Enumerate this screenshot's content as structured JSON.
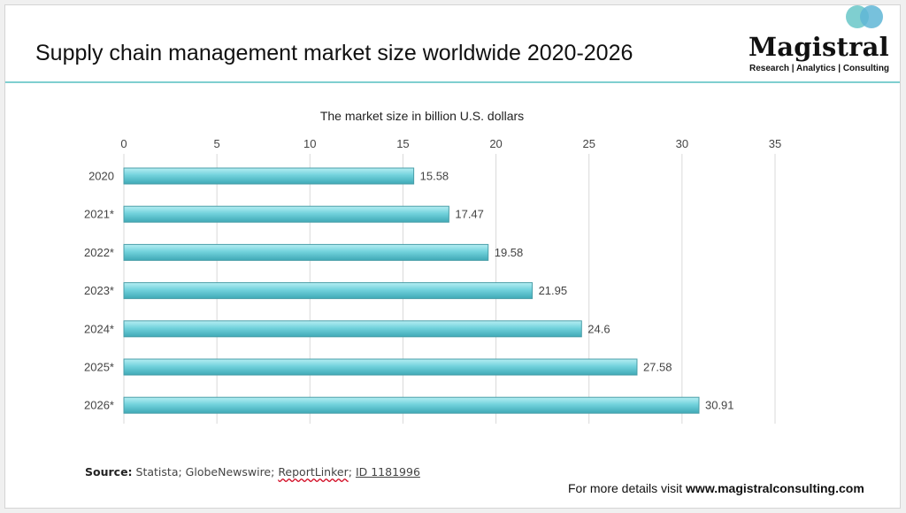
{
  "header": {
    "title": "Supply chain management market size worldwide 2020-2026"
  },
  "logo": {
    "name": "Magistral",
    "tagline": "Research | Analytics | Consulting",
    "circle_colors": [
      "#7fcfd0",
      "#5fb6d6"
    ]
  },
  "chart_data": {
    "type": "bar",
    "orientation": "horizontal",
    "title": "The market size in billion U.S. dollars",
    "xlabel": "",
    "ylabel": "",
    "categories": [
      "2020",
      "2021*",
      "2022*",
      "2023*",
      "2024*",
      "2025*",
      "2026*"
    ],
    "values": [
      15.58,
      17.47,
      19.58,
      21.95,
      24.6,
      27.58,
      30.91
    ],
    "xlim": [
      0,
      35
    ],
    "xticks": [
      0,
      5,
      10,
      15,
      20,
      25,
      30,
      35
    ],
    "x_axis_position": "top",
    "grid": true,
    "legend": "none",
    "bar_color": "#6fcfd9"
  },
  "source": {
    "label": "Source:",
    "parts": [
      "Statista; GlobeNewswire; ",
      "ReportLinker",
      ";",
      " ",
      "ID 1181996"
    ]
  },
  "footer": {
    "prefix": "For more details visit ",
    "link": "www.magistralconsulting.com"
  }
}
